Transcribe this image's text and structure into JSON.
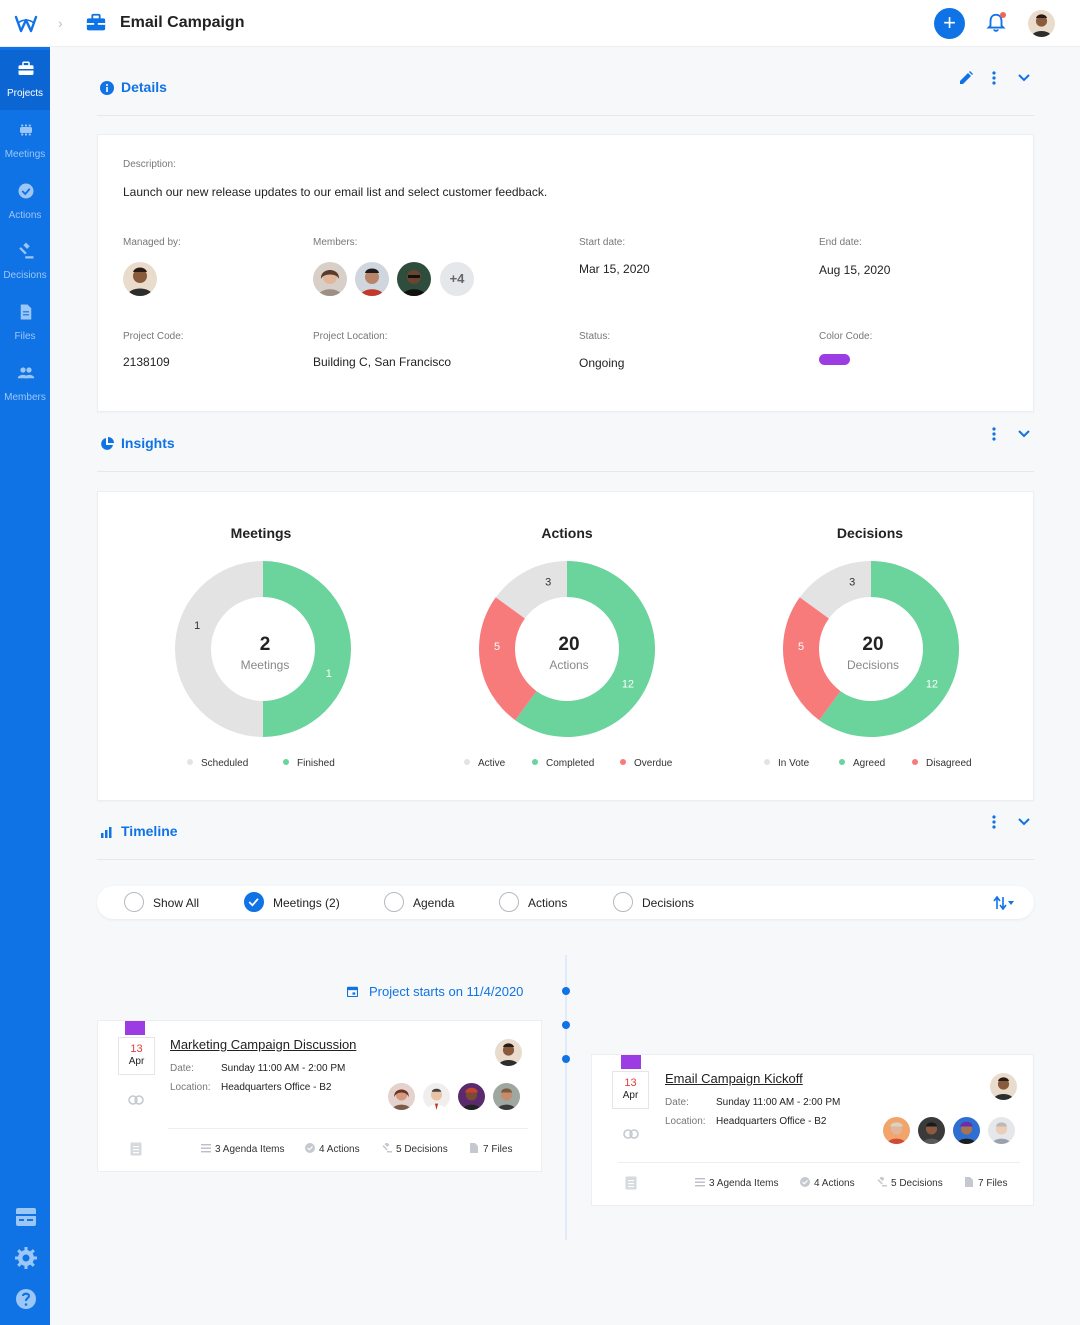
{
  "header": {
    "title": "Email Campaign",
    "colors": {
      "accent": "#0f73e6",
      "notification": "#f0645a"
    }
  },
  "sidebar": {
    "items": [
      {
        "label": "Projects",
        "icon": "briefcase-icon",
        "active": true
      },
      {
        "label": "Meetings",
        "icon": "meetings-icon"
      },
      {
        "label": "Actions",
        "icon": "check-circle-icon"
      },
      {
        "label": "Decisions",
        "icon": "gavel-icon"
      },
      {
        "label": "Files",
        "icon": "file-icon"
      },
      {
        "label": "Members",
        "icon": "people-icon"
      }
    ],
    "bottom_icons": [
      "board-icon",
      "gear-icon",
      "help-icon"
    ]
  },
  "details": {
    "title": "Details",
    "description_label": "Description:",
    "description": "Launch our new release updates to our email list and select customer feedback.",
    "managed_by_label": "Managed by:",
    "members_label": "Members:",
    "members_more": "+4",
    "start_date_label": "Start date:",
    "start_date": "Mar 15, 2020",
    "end_date_label": "End date:",
    "end_date": "Aug 15, 2020",
    "project_code_label": "Project Code:",
    "project_code": "2138109",
    "project_location_label": "Project Location:",
    "project_location": "Building C, San Francisco",
    "status_label": "Status:",
    "status": "Ongoing",
    "color_code_label": "Color Code:",
    "color_code": "#9b3de3"
  },
  "insights": {
    "title": "Insights",
    "charts": [
      {
        "title": "Meetings",
        "total": "2",
        "unit": "Meetings",
        "segments": [
          {
            "name": "Scheduled",
            "value": 1,
            "color": "#e3e3e3"
          },
          {
            "name": "Finished",
            "value": 1,
            "color": "#6bd39c"
          }
        ],
        "legend": [
          "Scheduled",
          "Finished"
        ]
      },
      {
        "title": "Actions",
        "total": "20",
        "unit": "Actions",
        "segments": [
          {
            "name": "Active",
            "value": 3,
            "color": "#e3e3e3"
          },
          {
            "name": "Completed",
            "value": 12,
            "color": "#6bd39c"
          },
          {
            "name": "Overdue",
            "value": 5,
            "color": "#f77b7b"
          }
        ],
        "legend": [
          "Active",
          "Completed",
          "Overdue"
        ]
      },
      {
        "title": "Decisions",
        "total": "20",
        "unit": "Decisions",
        "segments": [
          {
            "name": "In Vote",
            "value": 3,
            "color": "#e3e3e3"
          },
          {
            "name": "Agreed",
            "value": 12,
            "color": "#6bd39c"
          },
          {
            "name": "Disagreed",
            "value": 5,
            "color": "#f77b7b"
          }
        ],
        "legend": [
          "In Vote",
          "Agreed",
          "Disagreed"
        ]
      }
    ]
  },
  "timeline": {
    "title": "Timeline",
    "filters": [
      {
        "label": "Show All",
        "checked": false
      },
      {
        "label": "Meetings (2)",
        "checked": true
      },
      {
        "label": "Agenda",
        "checked": false
      },
      {
        "label": "Actions",
        "checked": false
      },
      {
        "label": "Decisions",
        "checked": false
      }
    ],
    "project_start": "Project starts on 11/4/2020",
    "events": [
      {
        "day": "13",
        "month": "Apr",
        "title": "Marketing Campaign Discussion",
        "date_label": "Date:",
        "date": "Sunday 11:00 AM - 2:00 PM",
        "location_label": "Location:",
        "location": "Headquarters Office - B2",
        "agenda": "3 Agenda Items",
        "actions": "4 Actions",
        "decisions": "5 Decisions",
        "files": "7 Files"
      },
      {
        "day": "13",
        "month": "Apr",
        "title": "Email Campaign Kickoff",
        "date_label": "Date:",
        "date": "Sunday 11:00 AM - 2:00 PM",
        "location_label": "Location:",
        "location": "Headquarters Office - B2",
        "agenda": "3 Agenda Items",
        "actions": "4 Actions",
        "decisions": "5 Decisions",
        "files": "7 Files"
      }
    ]
  }
}
